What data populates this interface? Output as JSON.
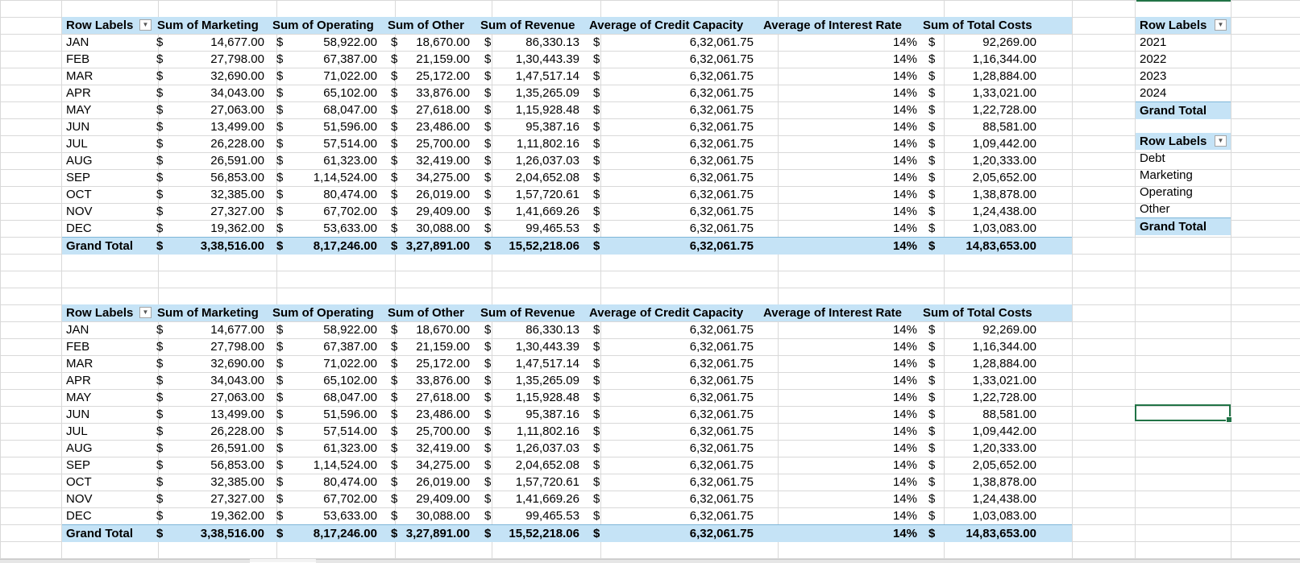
{
  "pivot_header": {
    "row_labels": "Row Labels",
    "marketing": "Sum of Marketing",
    "operating": "Sum of Operating",
    "other": "Sum of Other",
    "revenue": "Sum of Revenue",
    "credit": "Average of Credit Capacity",
    "interest": "Average of Interest Rate",
    "costs": "Sum of Total Costs",
    "currency": "$"
  },
  "rows": [
    {
      "label": "JAN",
      "marketing": "14,677.00",
      "operating": "58,922.00",
      "other": "18,670.00",
      "revenue": "86,330.13",
      "credit": "6,32,061.75",
      "interest": "14%",
      "costs": "92,269.00"
    },
    {
      "label": "FEB",
      "marketing": "27,798.00",
      "operating": "67,387.00",
      "other": "21,159.00",
      "revenue": "1,30,443.39",
      "credit": "6,32,061.75",
      "interest": "14%",
      "costs": "1,16,344.00"
    },
    {
      "label": "MAR",
      "marketing": "32,690.00",
      "operating": "71,022.00",
      "other": "25,172.00",
      "revenue": "1,47,517.14",
      "credit": "6,32,061.75",
      "interest": "14%",
      "costs": "1,28,884.00"
    },
    {
      "label": "APR",
      "marketing": "34,043.00",
      "operating": "65,102.00",
      "other": "33,876.00",
      "revenue": "1,35,265.09",
      "credit": "6,32,061.75",
      "interest": "14%",
      "costs": "1,33,021.00"
    },
    {
      "label": "MAY",
      "marketing": "27,063.00",
      "operating": "68,047.00",
      "other": "27,618.00",
      "revenue": "1,15,928.48",
      "credit": "6,32,061.75",
      "interest": "14%",
      "costs": "1,22,728.00"
    },
    {
      "label": "JUN",
      "marketing": "13,499.00",
      "operating": "51,596.00",
      "other": "23,486.00",
      "revenue": "95,387.16",
      "credit": "6,32,061.75",
      "interest": "14%",
      "costs": "88,581.00"
    },
    {
      "label": "JUL",
      "marketing": "26,228.00",
      "operating": "57,514.00",
      "other": "25,700.00",
      "revenue": "1,11,802.16",
      "credit": "6,32,061.75",
      "interest": "14%",
      "costs": "1,09,442.00"
    },
    {
      "label": "AUG",
      "marketing": "26,591.00",
      "operating": "61,323.00",
      "other": "32,419.00",
      "revenue": "1,26,037.03",
      "credit": "6,32,061.75",
      "interest": "14%",
      "costs": "1,20,333.00"
    },
    {
      "label": "SEP",
      "marketing": "56,853.00",
      "operating": "1,14,524.00",
      "other": "34,275.00",
      "revenue": "2,04,652.08",
      "credit": "6,32,061.75",
      "interest": "14%",
      "costs": "2,05,652.00"
    },
    {
      "label": "OCT",
      "marketing": "32,385.00",
      "operating": "80,474.00",
      "other": "26,019.00",
      "revenue": "1,57,720.61",
      "credit": "6,32,061.75",
      "interest": "14%",
      "costs": "1,38,878.00"
    },
    {
      "label": "NOV",
      "marketing": "27,327.00",
      "operating": "67,702.00",
      "other": "29,409.00",
      "revenue": "1,41,669.26",
      "credit": "6,32,061.75",
      "interest": "14%",
      "costs": "1,24,438.00"
    },
    {
      "label": "DEC",
      "marketing": "19,362.00",
      "operating": "53,633.00",
      "other": "30,088.00",
      "revenue": "99,465.53",
      "credit": "6,32,061.75",
      "interest": "14%",
      "costs": "1,03,083.00"
    }
  ],
  "grand_total": {
    "label": "Grand Total",
    "marketing": "3,38,516.00",
    "operating": "8,17,246.00",
    "other": "3,27,891.00",
    "revenue": "15,52,218.06",
    "credit": "6,32,061.75",
    "interest": "14%",
    "costs": "14,83,653.00"
  },
  "year_pivot": {
    "header": "Row Labels",
    "items": [
      "2021",
      "2022",
      "2023",
      "2024"
    ],
    "total": "Grand Total"
  },
  "category_pivot": {
    "header": "Row Labels",
    "items": [
      "Debt",
      "Marketing",
      "Operating",
      "Other"
    ],
    "total": "Grand Total"
  },
  "colors": {
    "pivot_band": "#c5e3f6",
    "selection": "#217346",
    "gridline": "#d9d9d9"
  },
  "icons": {
    "filter_dropdown": "chevron-down-icon"
  }
}
